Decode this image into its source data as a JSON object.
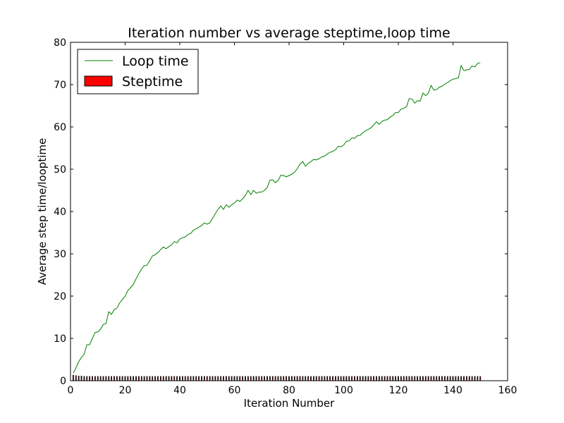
{
  "chart_data": {
    "type": "line",
    "title": "Iteration number vs average steptime,loop time",
    "xlabel": "Iteration Number",
    "ylabel": "Average step time/looptime",
    "xlim": [
      0,
      160
    ],
    "ylim": [
      0,
      80
    ],
    "xticks": [
      0,
      20,
      40,
      60,
      80,
      100,
      120,
      140,
      160
    ],
    "yticks": [
      0,
      10,
      20,
      30,
      40,
      50,
      60,
      70,
      80
    ],
    "grid": false,
    "legend_position": "top-left",
    "legend": [
      {
        "label": "Loop time",
        "kind": "line",
        "color": "#008000"
      },
      {
        "label": "Steptime",
        "kind": "bar",
        "color": "#ff0000"
      }
    ],
    "series": [
      {
        "name": "Loop time",
        "type": "line",
        "color": "#008000",
        "x": [
          1,
          2,
          3,
          4,
          5,
          6,
          7,
          8,
          9,
          10,
          11,
          12,
          13,
          14,
          15,
          16,
          17,
          18,
          19,
          20,
          21,
          22,
          23,
          24,
          25,
          26,
          27,
          28,
          29,
          30,
          31,
          32,
          33,
          34,
          35,
          36,
          37,
          38,
          39,
          40,
          41,
          42,
          43,
          44,
          45,
          46,
          47,
          48,
          49,
          50,
          51,
          52,
          53,
          54,
          55,
          56,
          57,
          58,
          59,
          60,
          61,
          62,
          63,
          64,
          65,
          66,
          67,
          68,
          69,
          70,
          71,
          72,
          73,
          74,
          75,
          76,
          77,
          78,
          79,
          80,
          81,
          82,
          83,
          84,
          85,
          86,
          87,
          88,
          89,
          90,
          91,
          92,
          93,
          94,
          95,
          96,
          97,
          98,
          99,
          100,
          101,
          102,
          103,
          104,
          105,
          106,
          107,
          108,
          109,
          110,
          111,
          112,
          113,
          114,
          115,
          116,
          117,
          118,
          119,
          120,
          121,
          122,
          123,
          124,
          125,
          126,
          127,
          128,
          129,
          130,
          131,
          132,
          133,
          134,
          135,
          136,
          137,
          138,
          139,
          140,
          141,
          142,
          143,
          144,
          145,
          146,
          147,
          148,
          149,
          150
        ],
        "values": [
          1.8,
          3.0,
          4.5,
          5.5,
          6.3,
          8.5,
          8.5,
          10.0,
          11.4,
          11.5,
          12.2,
          13.3,
          13.5,
          16.3,
          15.7,
          16.8,
          17.2,
          18.4,
          19.2,
          20.0,
          21.3,
          22.0,
          22.8,
          24.1,
          25.3,
          26.4,
          27.2,
          27.3,
          28.4,
          29.5,
          29.8,
          30.3,
          31.0,
          31.6,
          31.2,
          31.7,
          32.1,
          32.9,
          32.6,
          33.5,
          33.8,
          34.0,
          34.6,
          34.8,
          35.6,
          35.9,
          36.3,
          36.7,
          37.3,
          37.0,
          37.3,
          38.4,
          39.5,
          40.5,
          41.3,
          40.5,
          41.6,
          41.0,
          41.6,
          42.0,
          42.7,
          42.4,
          43.0,
          43.8,
          45.0,
          44.0,
          45.0,
          44.3,
          44.6,
          44.6,
          45.0,
          45.7,
          47.4,
          47.5,
          46.8,
          47.3,
          48.6,
          48.5,
          48.2,
          48.5,
          48.8,
          49.3,
          50.1,
          51.2,
          51.8,
          50.7,
          51.4,
          51.8,
          52.3,
          52.2,
          52.5,
          52.9,
          53.1,
          53.6,
          54.0,
          54.2,
          54.6,
          55.4,
          55.3,
          55.7,
          56.6,
          56.7,
          57.4,
          57.3,
          57.9,
          58.0,
          58.6,
          59.1,
          59.4,
          59.8,
          60.5,
          61.2,
          60.6,
          61.3,
          61.6,
          61.7,
          62.3,
          62.7,
          63.4,
          63.4,
          64.2,
          64.4,
          64.8,
          66.7,
          66.6,
          65.6,
          66.2,
          66.1,
          68.0,
          67.4,
          68.0,
          69.8,
          68.7,
          68.8,
          69.4,
          69.6,
          70.1,
          70.5,
          70.9,
          71.3,
          71.4,
          71.6,
          74.5,
          73.3,
          73.5,
          73.6,
          74.4,
          74.2,
          75.0,
          75.2
        ]
      },
      {
        "name": "Steptime",
        "type": "bar",
        "color": "#ff0000",
        "x": [
          1,
          2,
          3,
          4,
          5,
          6,
          7,
          8,
          9,
          10,
          11,
          12,
          13,
          14,
          15,
          16,
          17,
          18,
          19,
          20,
          21,
          22,
          23,
          24,
          25,
          26,
          27,
          28,
          29,
          30,
          31,
          32,
          33,
          34,
          35,
          36,
          37,
          38,
          39,
          40,
          41,
          42,
          43,
          44,
          45,
          46,
          47,
          48,
          49,
          50,
          51,
          52,
          53,
          54,
          55,
          56,
          57,
          58,
          59,
          60,
          61,
          62,
          63,
          64,
          65,
          66,
          67,
          68,
          69,
          70,
          71,
          72,
          73,
          74,
          75,
          76,
          77,
          78,
          79,
          80,
          81,
          82,
          83,
          84,
          85,
          86,
          87,
          88,
          89,
          90,
          91,
          92,
          93,
          94,
          95,
          96,
          97,
          98,
          99,
          100,
          101,
          102,
          103,
          104,
          105,
          106,
          107,
          108,
          109,
          110,
          111,
          112,
          113,
          114,
          115,
          116,
          117,
          118,
          119,
          120,
          121,
          122,
          123,
          124,
          125,
          126,
          127,
          128,
          129,
          130,
          131,
          132,
          133,
          134,
          135,
          136,
          137,
          138,
          139,
          140,
          141,
          142,
          143,
          144,
          145,
          146,
          147,
          148,
          149,
          150
        ],
        "values": [
          1.3,
          1.2,
          1.1,
          1.1,
          1.0,
          1.0,
          1.0,
          1.0,
          1.0,
          1.0,
          1.0,
          1.0,
          1.0,
          1.0,
          1.0,
          1.0,
          1.0,
          1.0,
          1.0,
          1.0,
          1.0,
          1.0,
          1.0,
          1.0,
          1.0,
          1.0,
          1.0,
          1.0,
          1.0,
          1.0,
          1.0,
          1.0,
          1.0,
          1.0,
          1.0,
          1.0,
          1.0,
          1.0,
          1.0,
          1.0,
          1.0,
          1.0,
          1.0,
          1.0,
          1.0,
          1.0,
          1.0,
          1.0,
          1.0,
          1.0,
          1.0,
          1.0,
          1.0,
          1.0,
          1.0,
          1.0,
          1.0,
          1.0,
          1.0,
          1.0,
          1.0,
          1.0,
          1.0,
          1.0,
          1.0,
          1.0,
          1.0,
          1.0,
          1.0,
          1.0,
          1.0,
          1.0,
          1.0,
          1.0,
          1.0,
          1.0,
          1.0,
          1.0,
          1.0,
          1.0,
          1.0,
          1.0,
          1.0,
          1.0,
          1.0,
          1.0,
          1.0,
          1.0,
          1.0,
          1.0,
          1.0,
          1.0,
          1.0,
          1.0,
          1.0,
          1.0,
          1.0,
          1.0,
          1.0,
          1.0,
          1.0,
          1.0,
          1.0,
          1.0,
          1.0,
          1.0,
          1.0,
          1.0,
          1.0,
          1.0,
          1.0,
          1.0,
          1.0,
          1.0,
          1.0,
          1.0,
          1.0,
          1.0,
          1.0,
          1.0,
          1.0,
          1.0,
          1.0,
          1.0,
          1.0,
          1.0,
          1.0,
          1.0,
          1.0,
          1.0,
          1.0,
          1.0,
          1.0,
          1.0,
          1.0,
          1.0,
          1.0,
          1.0,
          1.0,
          1.0,
          1.0,
          1.0,
          1.0,
          1.0,
          1.0,
          1.0,
          1.0,
          1.0,
          1.0,
          1.0
        ]
      }
    ]
  }
}
